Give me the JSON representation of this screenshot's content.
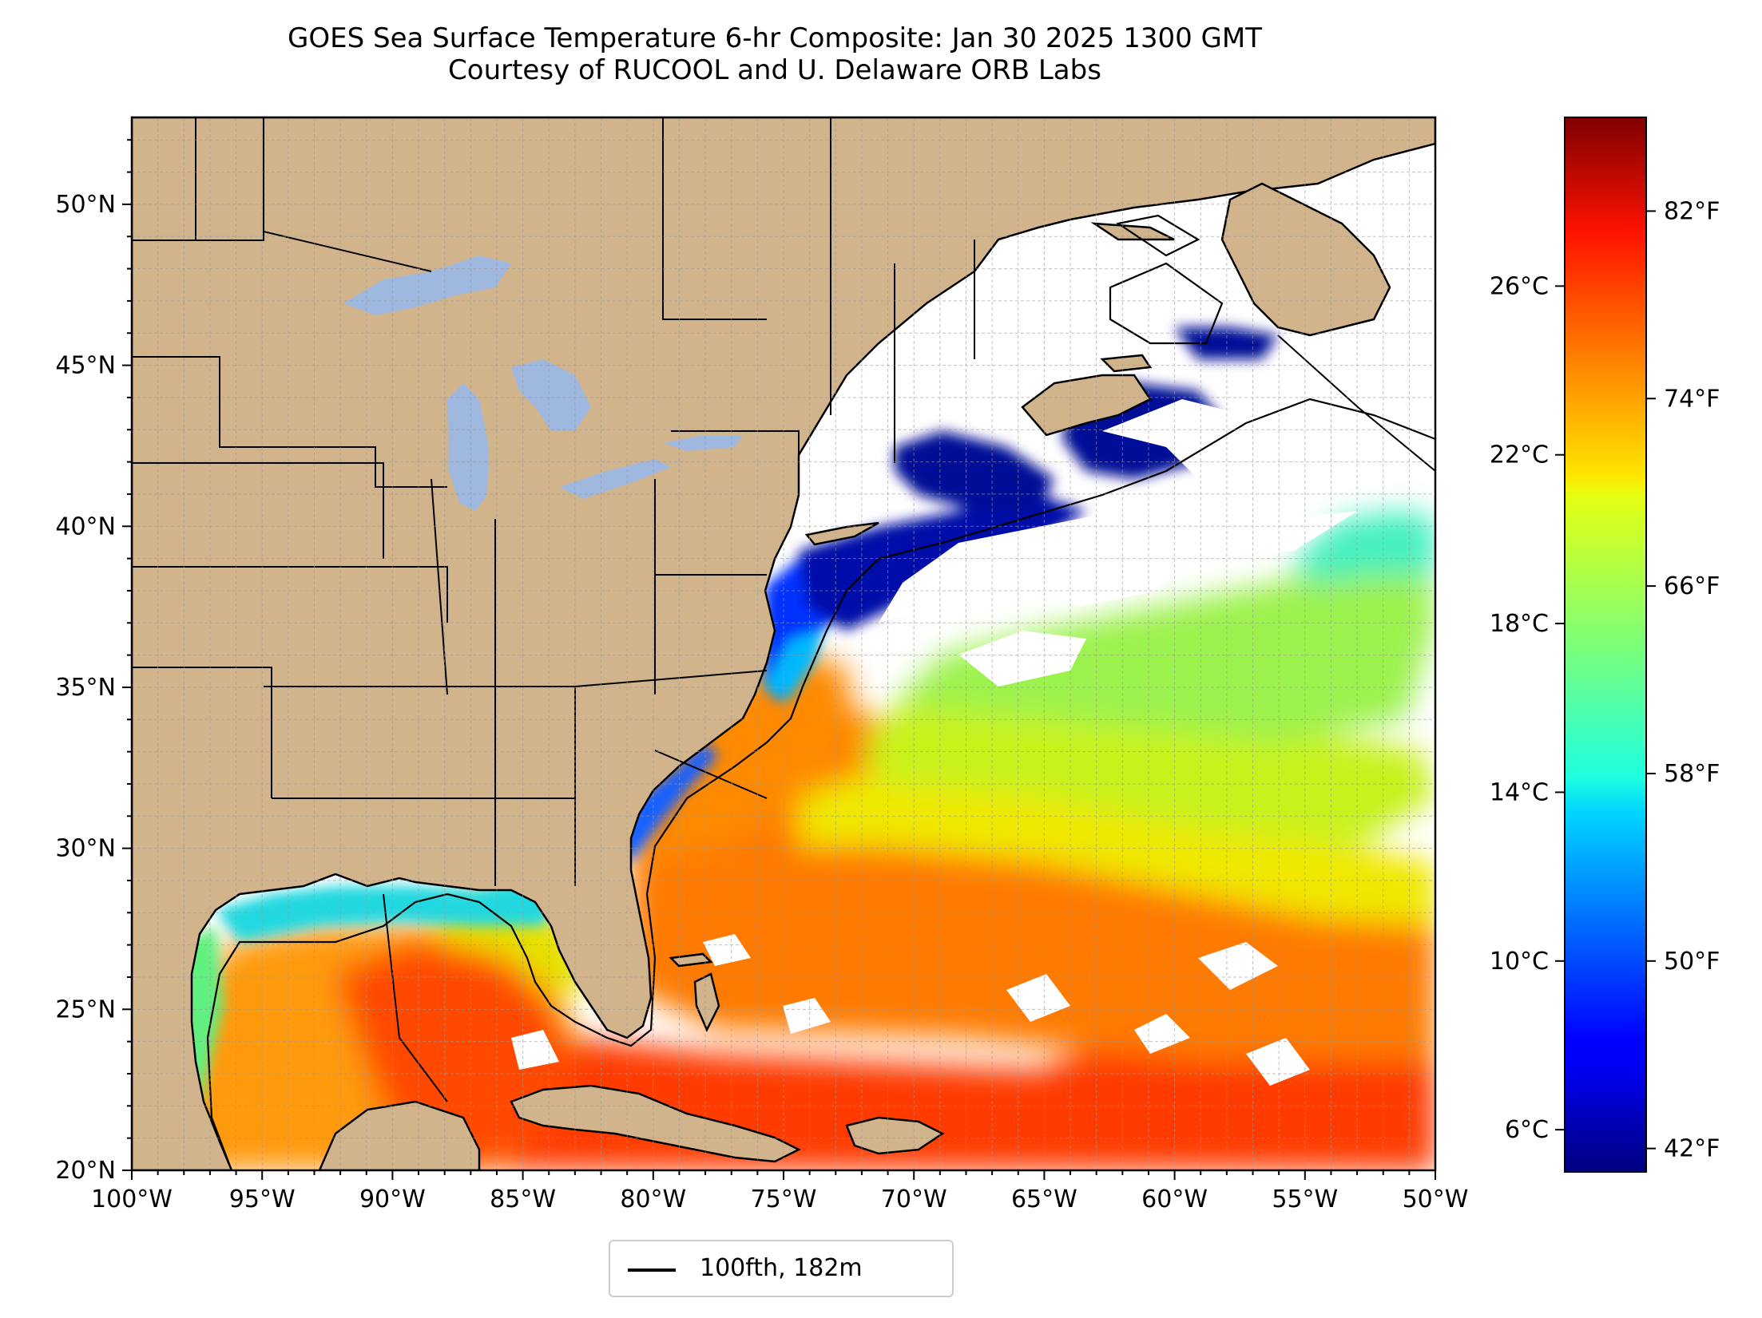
{
  "title": "GOES Sea Surface Temperature 6-hr Composite: Jan 30 2025 1300 GMT",
  "subtitle": "Courtesy of RUCOOL and U. Delaware ORB Labs",
  "map": {
    "extent": {
      "lon": [
        -100,
        -50
      ],
      "lat": [
        20,
        52.7
      ]
    },
    "lat_ticks": [
      "50°N",
      "45°N",
      "40°N",
      "35°N",
      "30°N",
      "25°N",
      "20°N"
    ],
    "lon_ticks": [
      "100°W",
      "95°W",
      "90°W",
      "85°W",
      "80°W",
      "75°W",
      "70°W",
      "65°W",
      "60°W",
      "55°W",
      "50°W"
    ],
    "land_color": "#d2b48c",
    "lake_color": "#9fb8e0",
    "grid": true
  },
  "colorbar": {
    "colormap": "jet",
    "celsius_ticks": [
      "26°C",
      "22°C",
      "18°C",
      "14°C",
      "10°C",
      "6°C"
    ],
    "fahrenheit_ticks": [
      "82°F",
      "74°F",
      "66°F",
      "58°F",
      "50°F",
      "42°F"
    ]
  },
  "legend": {
    "label": "100fth, 182m"
  }
}
